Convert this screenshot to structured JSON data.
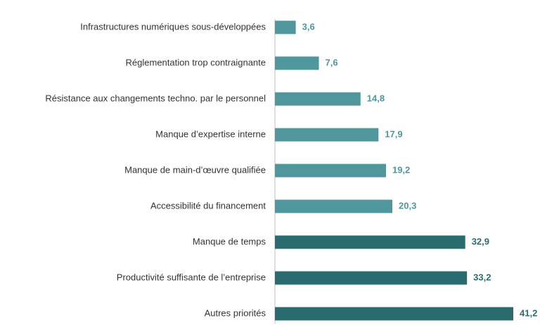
{
  "chart_data": {
    "type": "barh",
    "categories": [
      "Infrastructures numériques sous-développées",
      "Réglementation trop contraignante",
      "Résistance aux changements techno. par le personnel",
      "Manque d’expertise interne",
      "Manque de main-d’œuvre qualifiée",
      "Accessibilité du financement",
      "Manque de temps",
      "Productivité suffisante de l’entreprise",
      "Autres priorités"
    ],
    "values": [
      3.6,
      7.6,
      14.8,
      17.9,
      19.2,
      20.3,
      32.9,
      33.2,
      41.2
    ],
    "value_labels": [
      "3,6",
      "7,6",
      "14,8",
      "17,9",
      "19,2",
      "20,3",
      "32,9",
      "33,2",
      "41,2"
    ],
    "colors": [
      "#4f979c",
      "#4f979c",
      "#4f979c",
      "#4f979c",
      "#4f979c",
      "#4f979c",
      "#2a6b70",
      "#2a6b70",
      "#2a6b70"
    ]
  }
}
